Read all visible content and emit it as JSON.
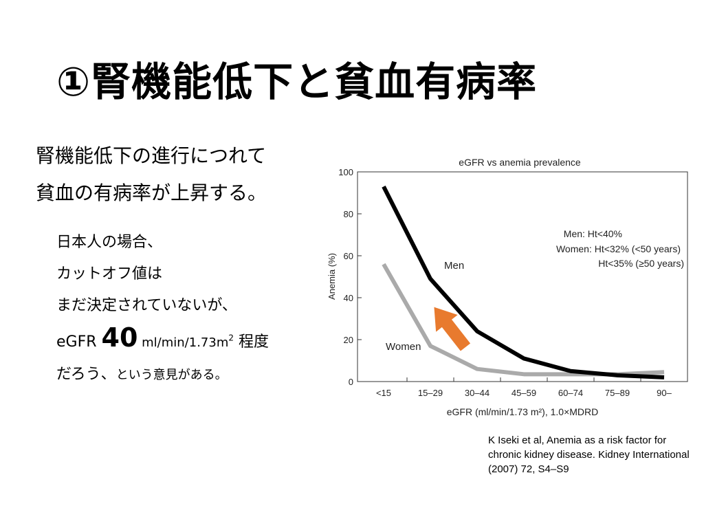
{
  "slide": {
    "title": "①腎機能低下と貧血有病率",
    "lead": [
      "腎機能低下の進行につれて",
      "貧血の有病率が上昇する。"
    ],
    "note": {
      "line1": "日本人の場合、",
      "line2": "カットオフ値は",
      "line3": "まだ決定されていないが、",
      "line4_prefix": "eGFR ",
      "line4_value": "40",
      "line4_unit": " ml/min/1.73m",
      "line4_sup": "2",
      "line4_suffix": " 程度",
      "line5_main": "だろう、",
      "line5_small": "という意見がある。"
    },
    "citation": "K Iseki et al, Anemia as a risk factor for chronic kidney disease. Kidney International (2007) 72, S4–S9"
  },
  "chart_data": {
    "type": "line",
    "title": "eGFR vs anemia prevalence",
    "xlabel": "eGFR (ml/min/1.73 m²), 1.0×MDRD",
    "ylabel": "Anemia (%)",
    "categories": [
      "<15",
      "15–29",
      "30–44",
      "45–59",
      "60–74",
      "75–89",
      "90–"
    ],
    "ylim": [
      0,
      100
    ],
    "yticks": [
      0,
      20,
      40,
      60,
      80,
      100
    ],
    "grid": false,
    "series": [
      {
        "name": "Men",
        "color": "#000000",
        "values": [
          93,
          49,
          24,
          11,
          5,
          3,
          2
        ]
      },
      {
        "name": "Women",
        "color": "#aaaaaa",
        "values": [
          56,
          17,
          6,
          3.5,
          3.5,
          3.5,
          4.5
        ]
      }
    ],
    "legend": [
      "Men: Ht<40%",
      "Women: Ht<32% (<50 years)",
      "Ht<35% (≥50 years)"
    ],
    "legend_position": "top-right",
    "arrow_color": "#e87a2e"
  }
}
